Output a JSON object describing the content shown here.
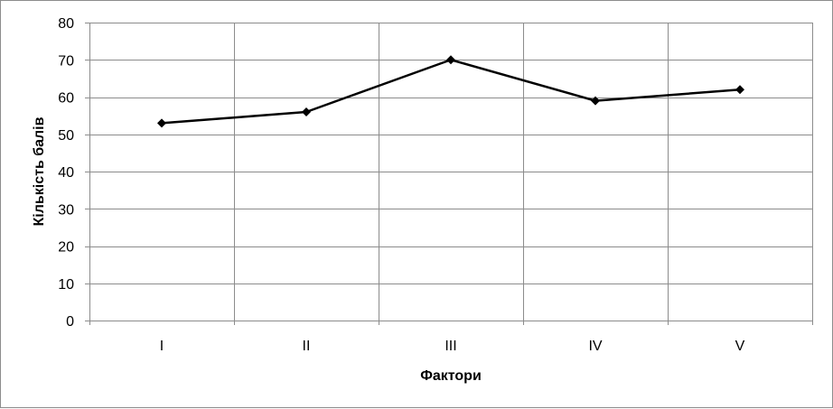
{
  "chart_data": {
    "type": "line",
    "title": "",
    "xlabel": "Фактори",
    "ylabel": "Кількість балів",
    "categories": [
      "I",
      "II",
      "III",
      "IV",
      "V"
    ],
    "series": [
      {
        "values": [
          53,
          56,
          70,
          59,
          62
        ]
      }
    ],
    "ylim": [
      0,
      80
    ],
    "yticks": [
      0,
      10,
      20,
      30,
      40,
      50,
      60,
      70,
      80
    ],
    "ytick_labels": [
      "0",
      "10",
      "20",
      "30",
      "40",
      "50",
      "60",
      "70",
      "80"
    ],
    "grid": true,
    "legend": "none",
    "colors": {
      "line": "#000000",
      "grid": "#8c8c8c",
      "marker": "#000000"
    },
    "marker": "diamond"
  }
}
